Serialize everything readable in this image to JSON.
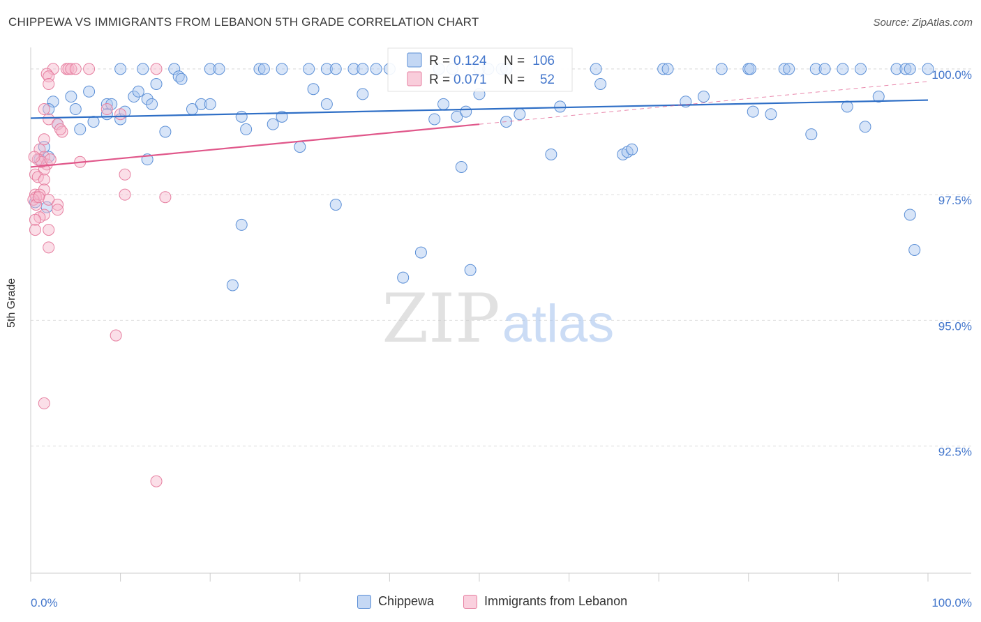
{
  "title": "CHIPPEWA VS IMMIGRANTS FROM LEBANON 5TH GRADE CORRELATION CHART",
  "source": "Source: ZipAtlas.com",
  "watermark": {
    "zip": "ZIP",
    "atlas": "atlas"
  },
  "colors": {
    "blue_fill": "#a9c6ef",
    "blue_stroke": "#5b8fd6",
    "blue_line": "#2f6fc6",
    "pink_fill": "#f6b8cc",
    "pink_stroke": "#e67fa0",
    "pink_line": "#e0578a",
    "axis_text": "#4477cc",
    "grid": "#dddddd"
  },
  "chart_data": {
    "type": "scatter",
    "xlabel": "",
    "ylabel": "5th Grade",
    "xlim": [
      0,
      100
    ],
    "ylim": [
      90.0,
      100.4
    ],
    "x_tick_labels": [
      "0.0%",
      "100.0%"
    ],
    "y_ticks": [
      92.5,
      95.0,
      97.5,
      100.0
    ],
    "y_tick_labels": [
      "92.5%",
      "95.0%",
      "97.5%",
      "100.0%"
    ],
    "legend": [
      {
        "name": "Chippewa",
        "R": "0.124",
        "N": "106"
      },
      {
        "name": "Immigrants from Lebanon",
        "R": "0.071",
        "N": "52"
      }
    ],
    "series": [
      {
        "name": "Chippewa",
        "trend": {
          "x0": 0,
          "y0": 99.02,
          "x1": 100,
          "y1": 99.38
        },
        "points": [
          [
            10,
            100
          ],
          [
            12.5,
            100
          ],
          [
            16,
            100
          ],
          [
            20,
            100
          ],
          [
            21,
            100
          ],
          [
            25.5,
            100
          ],
          [
            26,
            100
          ],
          [
            28,
            100
          ],
          [
            31,
            100
          ],
          [
            33,
            100
          ],
          [
            34,
            100
          ],
          [
            36,
            100
          ],
          [
            37,
            100
          ],
          [
            38.5,
            100
          ],
          [
            40,
            100
          ],
          [
            45.5,
            100
          ],
          [
            47,
            100
          ],
          [
            50,
            100
          ],
          [
            51,
            100
          ],
          [
            52.5,
            100
          ],
          [
            53,
            100
          ],
          [
            63,
            100
          ],
          [
            70.5,
            100
          ],
          [
            71,
            100
          ],
          [
            77,
            100
          ],
          [
            80,
            100
          ],
          [
            80.2,
            100
          ],
          [
            84,
            100
          ],
          [
            84.5,
            100
          ],
          [
            87.5,
            100
          ],
          [
            88.5,
            100
          ],
          [
            90.5,
            100
          ],
          [
            92.5,
            100
          ],
          [
            96.5,
            100
          ],
          [
            97.5,
            100
          ],
          [
            98,
            100
          ],
          [
            100,
            100
          ],
          [
            2.5,
            99.35
          ],
          [
            2,
            99.2
          ],
          [
            3,
            98.9
          ],
          [
            4.5,
            99.45
          ],
          [
            5,
            99.2
          ],
          [
            5.5,
            98.8
          ],
          [
            6.5,
            99.55
          ],
          [
            7,
            98.95
          ],
          [
            8.5,
            99.3
          ],
          [
            8.5,
            99.1
          ],
          [
            9,
            99.3
          ],
          [
            10,
            99
          ],
          [
            10.5,
            99.15
          ],
          [
            11.5,
            99.45
          ],
          [
            12,
            99.55
          ],
          [
            13,
            99.4
          ],
          [
            13.5,
            99.3
          ],
          [
            14,
            99.7
          ],
          [
            15,
            98.75
          ],
          [
            16.5,
            99.85
          ],
          [
            16.8,
            99.8
          ],
          [
            18,
            99.2
          ],
          [
            19,
            99.3
          ],
          [
            20,
            99.3
          ],
          [
            23.5,
            99.05
          ],
          [
            24,
            98.8
          ],
          [
            27,
            98.9
          ],
          [
            28,
            99.05
          ],
          [
            30,
            98.45
          ],
          [
            31.5,
            99.6
          ],
          [
            33,
            99.3
          ],
          [
            37,
            99.5
          ],
          [
            45,
            99
          ],
          [
            46,
            99.3
          ],
          [
            47.5,
            99.05
          ],
          [
            48.5,
            99.15
          ],
          [
            50,
            99.5
          ],
          [
            53,
            98.95
          ],
          [
            54.5,
            99.1
          ],
          [
            59,
            99.25
          ],
          [
            63.5,
            99.7
          ],
          [
            73,
            99.35
          ],
          [
            75,
            99.45
          ],
          [
            80.5,
            99.15
          ],
          [
            82.5,
            99.1
          ],
          [
            87,
            98.7
          ],
          [
            91,
            99.25
          ],
          [
            93,
            98.85
          ],
          [
            94.5,
            99.45
          ],
          [
            1,
            98.2
          ],
          [
            2,
            98.25
          ],
          [
            1.5,
            98.45
          ],
          [
            13,
            98.2
          ],
          [
            58,
            98.3
          ],
          [
            66,
            98.3
          ],
          [
            66.5,
            98.35
          ],
          [
            67,
            98.4
          ],
          [
            1.8,
            97.25
          ],
          [
            23.5,
            96.9
          ],
          [
            34,
            97.3
          ],
          [
            48,
            98.05
          ],
          [
            43.5,
            96.35
          ],
          [
            41.5,
            95.85
          ],
          [
            49,
            96.0
          ],
          [
            22.5,
            95.7
          ],
          [
            98,
            97.1
          ],
          [
            98.5,
            96.4
          ],
          [
            0.5,
            97.35
          ]
        ]
      },
      {
        "name": "Immigrants from Lebanon",
        "trend": {
          "x0": 0,
          "y0": 98.05,
          "x1": 50,
          "y1": 98.9,
          "dashed_to": {
            "x": 100,
            "y": 99.75
          }
        },
        "points": [
          [
            2.5,
            100
          ],
          [
            4,
            100
          ],
          [
            4.2,
            100
          ],
          [
            4.5,
            100
          ],
          [
            5,
            100
          ],
          [
            6.5,
            100
          ],
          [
            14,
            100
          ],
          [
            1.8,
            99.9
          ],
          [
            2,
            99.85
          ],
          [
            2,
            99.7
          ],
          [
            1.5,
            99.2
          ],
          [
            2,
            99
          ],
          [
            3,
            98.9
          ],
          [
            3.5,
            98.75
          ],
          [
            1.5,
            98.6
          ],
          [
            1,
            98.4
          ],
          [
            1.5,
            98.25
          ],
          [
            0.8,
            98.2
          ],
          [
            1.8,
            98.1
          ],
          [
            1.5,
            98
          ],
          [
            5.5,
            98.15
          ],
          [
            0.5,
            97.9
          ],
          [
            0.8,
            97.85
          ],
          [
            1.5,
            97.8
          ],
          [
            10.5,
            97.9
          ],
          [
            1.5,
            97.6
          ],
          [
            0.5,
            97.5
          ],
          [
            0.6,
            97.45
          ],
          [
            1,
            97.5
          ],
          [
            2,
            97.4
          ],
          [
            0.3,
            97.4
          ],
          [
            0.6,
            97.3
          ],
          [
            10.5,
            97.5
          ],
          [
            15,
            97.45
          ],
          [
            3,
            97.3
          ],
          [
            3,
            97.2
          ],
          [
            1.5,
            97.1
          ],
          [
            1,
            97.05
          ],
          [
            0.5,
            97.0
          ],
          [
            2,
            96.8
          ],
          [
            0.5,
            96.8
          ],
          [
            2,
            96.45
          ],
          [
            10,
            99.1
          ],
          [
            8.5,
            99.2
          ],
          [
            9.5,
            94.7
          ],
          [
            1.5,
            93.35
          ],
          [
            14,
            91.8
          ],
          [
            1.2,
            98.15
          ],
          [
            0.9,
            97.45
          ],
          [
            2.2,
            98.2
          ],
          [
            0.4,
            98.25
          ],
          [
            3.3,
            98.8
          ]
        ]
      }
    ]
  }
}
